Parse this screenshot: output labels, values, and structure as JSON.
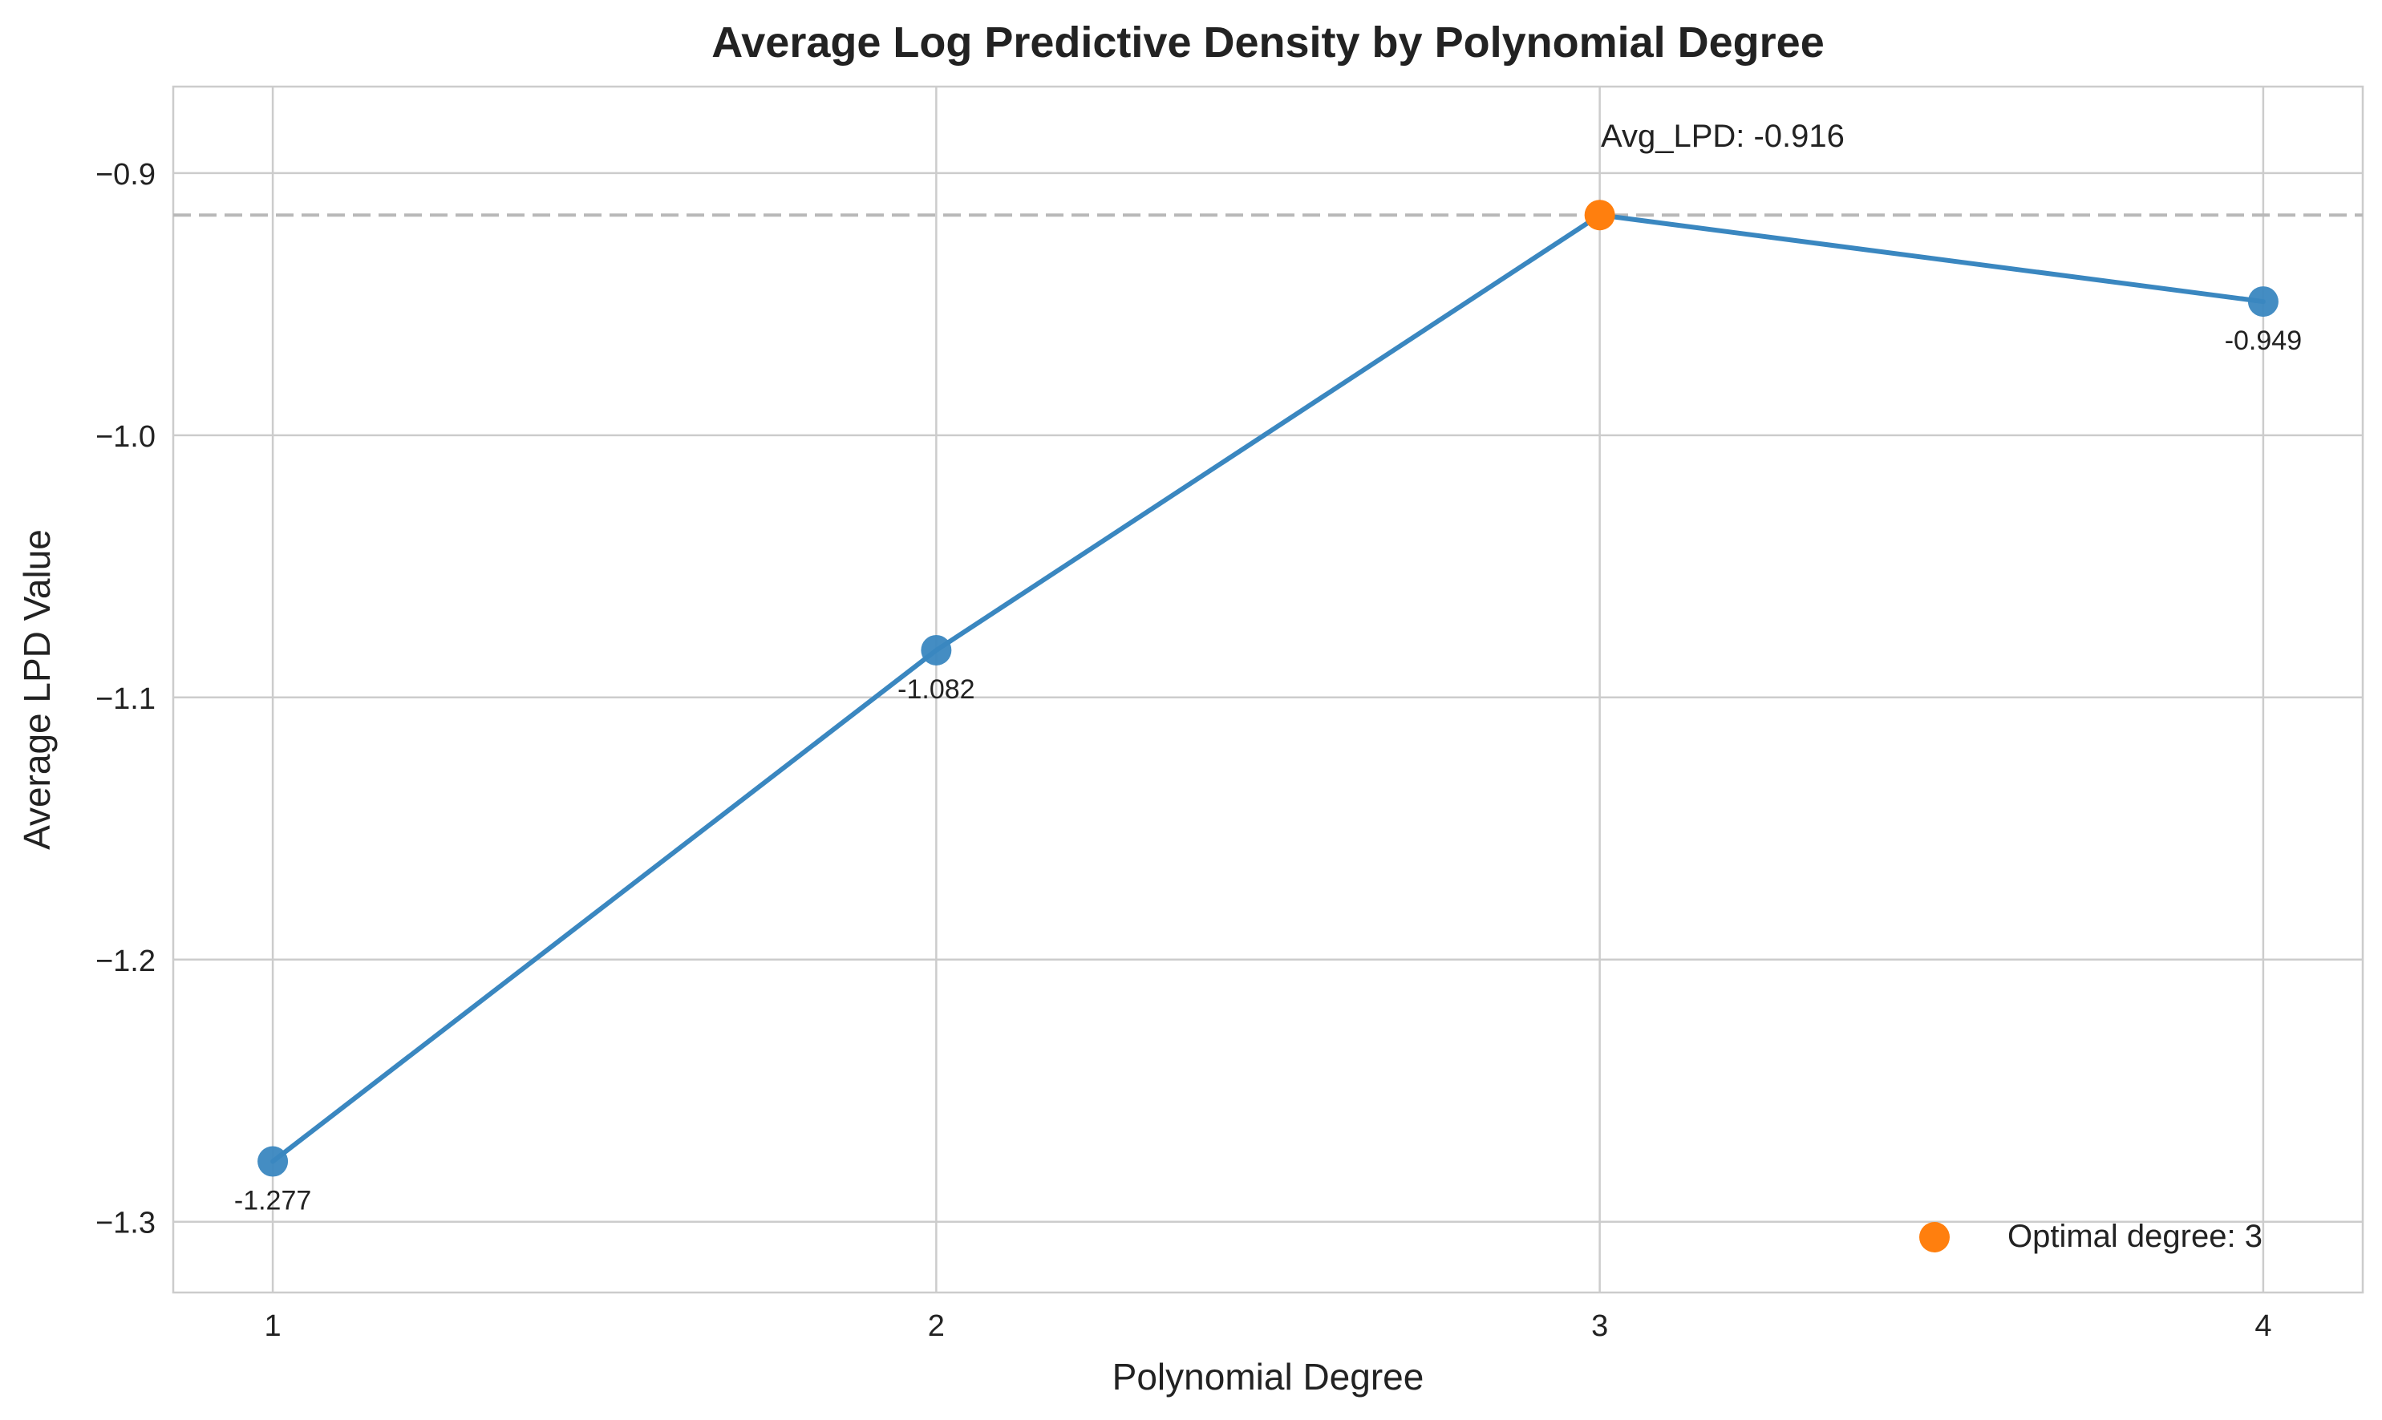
{
  "chart_data": {
    "type": "line",
    "title": "Average Log Predictive Density by Polynomial Degree",
    "xlabel": "Polynomial Degree",
    "ylabel": "Average LPD Value",
    "x": [
      1,
      2,
      3,
      4
    ],
    "xticks": [
      "1",
      "2",
      "3",
      "4"
    ],
    "xlim": [
      0.85,
      4.15
    ],
    "ylim": [
      -1.327,
      -0.867
    ],
    "yticks": [
      -0.9,
      -1.0,
      -1.1,
      -1.2,
      -1.3
    ],
    "ytick_labels": [
      "−0.9",
      "−1.0",
      "−1.1",
      "−1.2",
      "−1.3"
    ],
    "grid": true,
    "series": [
      {
        "values": [
          -1.277,
          -1.082,
          -0.916,
          -0.949
        ],
        "color": "#3a87c0"
      }
    ],
    "data_labels": [
      "-1.277",
      "-1.082",
      "",
      "-0.949"
    ],
    "optimal": {
      "x": 3,
      "y": -0.916,
      "color": "#ff7f0e"
    },
    "reference_line": {
      "y": -0.916,
      "style": "dashed",
      "color": "#b8b8b8"
    },
    "annotation": "Avg_LPD: -0.916",
    "legend": {
      "position": "bottom-right",
      "entries": [
        {
          "label": "Optimal degree: 3",
          "color": "#ff7f0e"
        }
      ]
    }
  }
}
